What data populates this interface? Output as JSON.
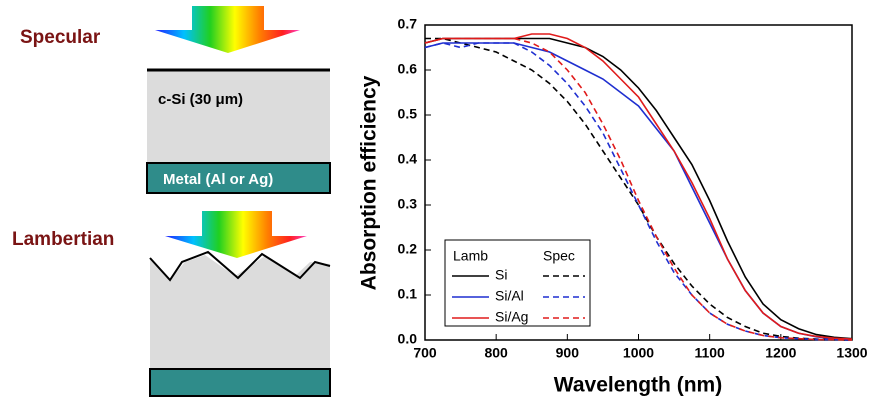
{
  "diagram": {
    "specular": "Specular",
    "layer": "c-Si (30 μm)",
    "metal": "Metal (Al or Ag)",
    "lambertian": "Lambertian"
  },
  "chart_data": {
    "type": "line",
    "x_label": "Wavelength (nm)",
    "y_label": "Absorption efficiency",
    "xlim": [
      700,
      1300
    ],
    "xticks": [
      700,
      800,
      900,
      1000,
      1100,
      1200,
      1300
    ],
    "ylim": [
      0,
      0.7
    ],
    "yticks": [
      {
        "value": 0,
        "label": "0.0"
      },
      0.1,
      0.2,
      0.3,
      0.4,
      0.5,
      0.6,
      0.7
    ],
    "legend_titles": [
      "Lamb",
      "Spec"
    ],
    "x": [
      700,
      725,
      750,
      775,
      800,
      825,
      850,
      875,
      900,
      925,
      950,
      975,
      1000,
      1025,
      1050,
      1075,
      1100,
      1125,
      1150,
      1175,
      1200,
      1225,
      1250,
      1275,
      1300
    ],
    "series": [
      {
        "name": "Si",
        "color": "#000000",
        "values": [
          0.66,
          0.67,
          0.67,
          0.67,
          0.67,
          0.67,
          0.67,
          0.67,
          0.66,
          0.65,
          0.63,
          0.6,
          0.56,
          0.51,
          0.45,
          0.39,
          0.31,
          0.22,
          0.14,
          0.08,
          0.045,
          0.025,
          0.012,
          0.006,
          0.003
        ],
        "spec_values": [
          0.67,
          0.67,
          0.66,
          0.65,
          0.64,
          0.62,
          0.6,
          0.57,
          0.53,
          0.48,
          0.42,
          0.36,
          0.3,
          0.23,
          0.17,
          0.12,
          0.08,
          0.05,
          0.03,
          0.015,
          0.008,
          0.004,
          0.002,
          0.001,
          0
        ]
      },
      {
        "name": "Si/Al",
        "color": "#1f2fd0",
        "values": [
          0.65,
          0.66,
          0.66,
          0.66,
          0.66,
          0.66,
          0.65,
          0.64,
          0.62,
          0.6,
          0.58,
          0.55,
          0.52,
          0.47,
          0.42,
          0.34,
          0.26,
          0.18,
          0.11,
          0.06,
          0.03,
          0.015,
          0.007,
          0.003,
          0.001
        ],
        "spec_values": [
          0.65,
          0.66,
          0.65,
          0.66,
          0.66,
          0.66,
          0.64,
          0.61,
          0.57,
          0.52,
          0.46,
          0.38,
          0.3,
          0.22,
          0.15,
          0.1,
          0.06,
          0.035,
          0.02,
          0.01,
          0.005,
          0.003,
          0.001,
          0.001,
          0
        ]
      },
      {
        "name": "Si/Ag",
        "color": "#e01b1b",
        "values": [
          0.66,
          0.67,
          0.67,
          0.67,
          0.67,
          0.67,
          0.68,
          0.68,
          0.67,
          0.65,
          0.62,
          0.58,
          0.54,
          0.48,
          0.42,
          0.35,
          0.27,
          0.18,
          0.11,
          0.06,
          0.03,
          0.015,
          0.008,
          0.004,
          0.002
        ],
        "spec_values": [
          0.66,
          0.67,
          0.67,
          0.67,
          0.67,
          0.67,
          0.66,
          0.64,
          0.6,
          0.55,
          0.48,
          0.4,
          0.31,
          0.23,
          0.16,
          0.1,
          0.06,
          0.035,
          0.02,
          0.01,
          0.005,
          0.003,
          0.001,
          0.001,
          0
        ]
      }
    ]
  }
}
